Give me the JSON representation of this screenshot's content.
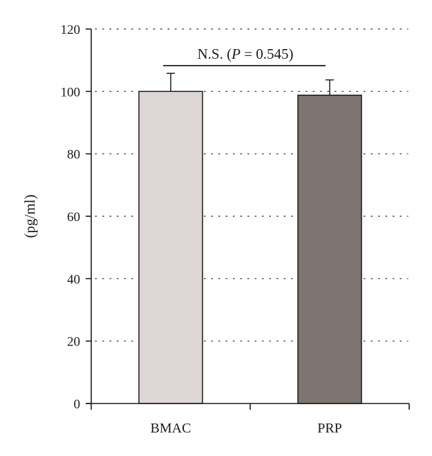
{
  "chart_data": {
    "type": "bar",
    "categories": [
      "BMAC",
      "PRP"
    ],
    "values": [
      100,
      98.8
    ],
    "error_plus": [
      5.8,
      4.9
    ],
    "colors": [
      "#ddd6d4",
      "#7e7571"
    ],
    "ylabel": "(pg/ml)",
    "xlabel": "",
    "title": "",
    "ylim": [
      0,
      120
    ],
    "yticks": [
      0,
      20,
      40,
      60,
      80,
      100,
      120
    ],
    "ytick_labels": [
      "0",
      "20",
      "40",
      "60",
      "80",
      "100",
      "120"
    ],
    "grid": "dotted horizontal",
    "annotation": {
      "prefix": "N.S. (",
      "italic": "P",
      "suffix": " = 0.545)"
    }
  }
}
